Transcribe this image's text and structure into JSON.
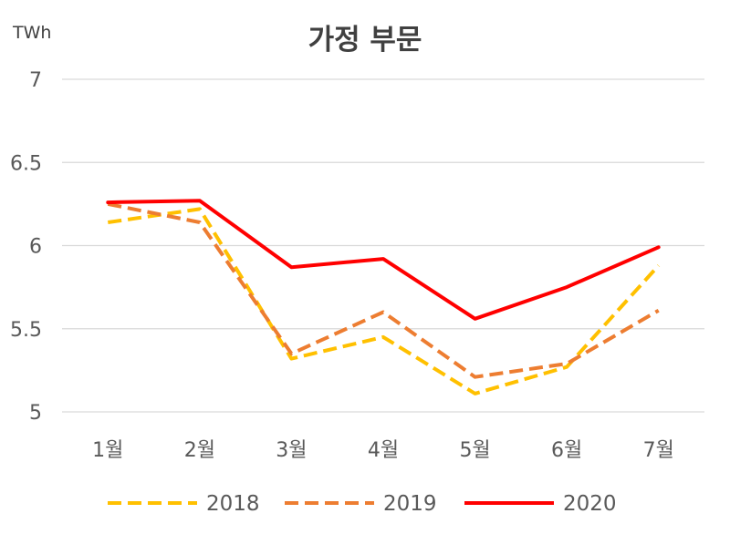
{
  "chart_data": {
    "type": "line",
    "title": "가정 부문",
    "ylabel": "TWh",
    "xlabel": "",
    "categories": [
      "1월",
      "2월",
      "3월",
      "4월",
      "5월",
      "6월",
      "7월"
    ],
    "ylim": [
      5,
      7
    ],
    "yticks": [
      "5",
      "5.5",
      "6",
      "6.5",
      "7"
    ],
    "grid": true,
    "legend": "bottom",
    "series": [
      {
        "name": "2018",
        "values": [
          6.14,
          6.22,
          5.32,
          5.45,
          5.11,
          5.27,
          5.88
        ],
        "color": "#FFC000",
        "style": "dashed"
      },
      {
        "name": "2019",
        "values": [
          6.25,
          6.14,
          5.35,
          5.6,
          5.21,
          5.29,
          5.61
        ],
        "color": "#ED7D31",
        "style": "dashed"
      },
      {
        "name": "2020",
        "values": [
          6.26,
          6.27,
          5.87,
          5.92,
          5.56,
          5.75,
          5.99
        ],
        "color": "#FF0000",
        "style": "solid"
      }
    ]
  }
}
